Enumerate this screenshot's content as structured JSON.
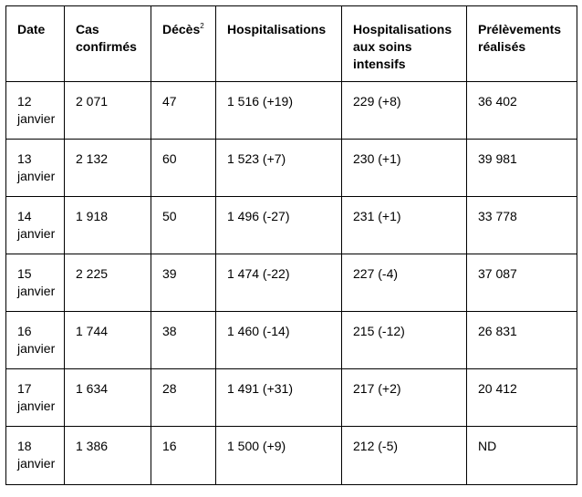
{
  "table": {
    "headers": {
      "date": "Date",
      "cases": "Cas confirmés",
      "deaths": "Décès",
      "deaths_footnote": "2",
      "hospitalisations": "Hospitalisations",
      "icu": "Hospitalisations aux soins intensifs",
      "tests": "Prélèvements réalisés"
    },
    "rows": [
      {
        "date": "12 janvier",
        "cases": "2 071",
        "deaths": "47",
        "hospitalisations": "1 516 (+19)",
        "icu": "229 (+8)",
        "tests": "36 402"
      },
      {
        "date": "13 janvier",
        "cases": "2 132",
        "deaths": "60",
        "hospitalisations": "1 523 (+7)",
        "icu": "230 (+1)",
        "tests": "39 981"
      },
      {
        "date": "14 janvier",
        "cases": "1 918",
        "deaths": "50",
        "hospitalisations": "1 496 (-27)",
        "icu": "231 (+1)",
        "tests": "33 778"
      },
      {
        "date": "15 janvier",
        "cases": "2 225",
        "deaths": "39",
        "hospitalisations": "1 474 (-22)",
        "icu": "227 (-4)",
        "tests": "37 087"
      },
      {
        "date": "16 janvier",
        "cases": "1 744",
        "deaths": "38",
        "hospitalisations": "1 460 (-14)",
        "icu": "215 (-12)",
        "tests": "26 831"
      },
      {
        "date": "17 janvier",
        "cases": "1 634",
        "deaths": "28",
        "hospitalisations": "1 491 (+31)",
        "icu": "217 (+2)",
        "tests": "20 412"
      },
      {
        "date": "18 janvier",
        "cases": "1 386",
        "deaths": "16",
        "hospitalisations": "1 500 (+9)",
        "icu": "212 (-5)",
        "tests": "ND"
      }
    ]
  }
}
